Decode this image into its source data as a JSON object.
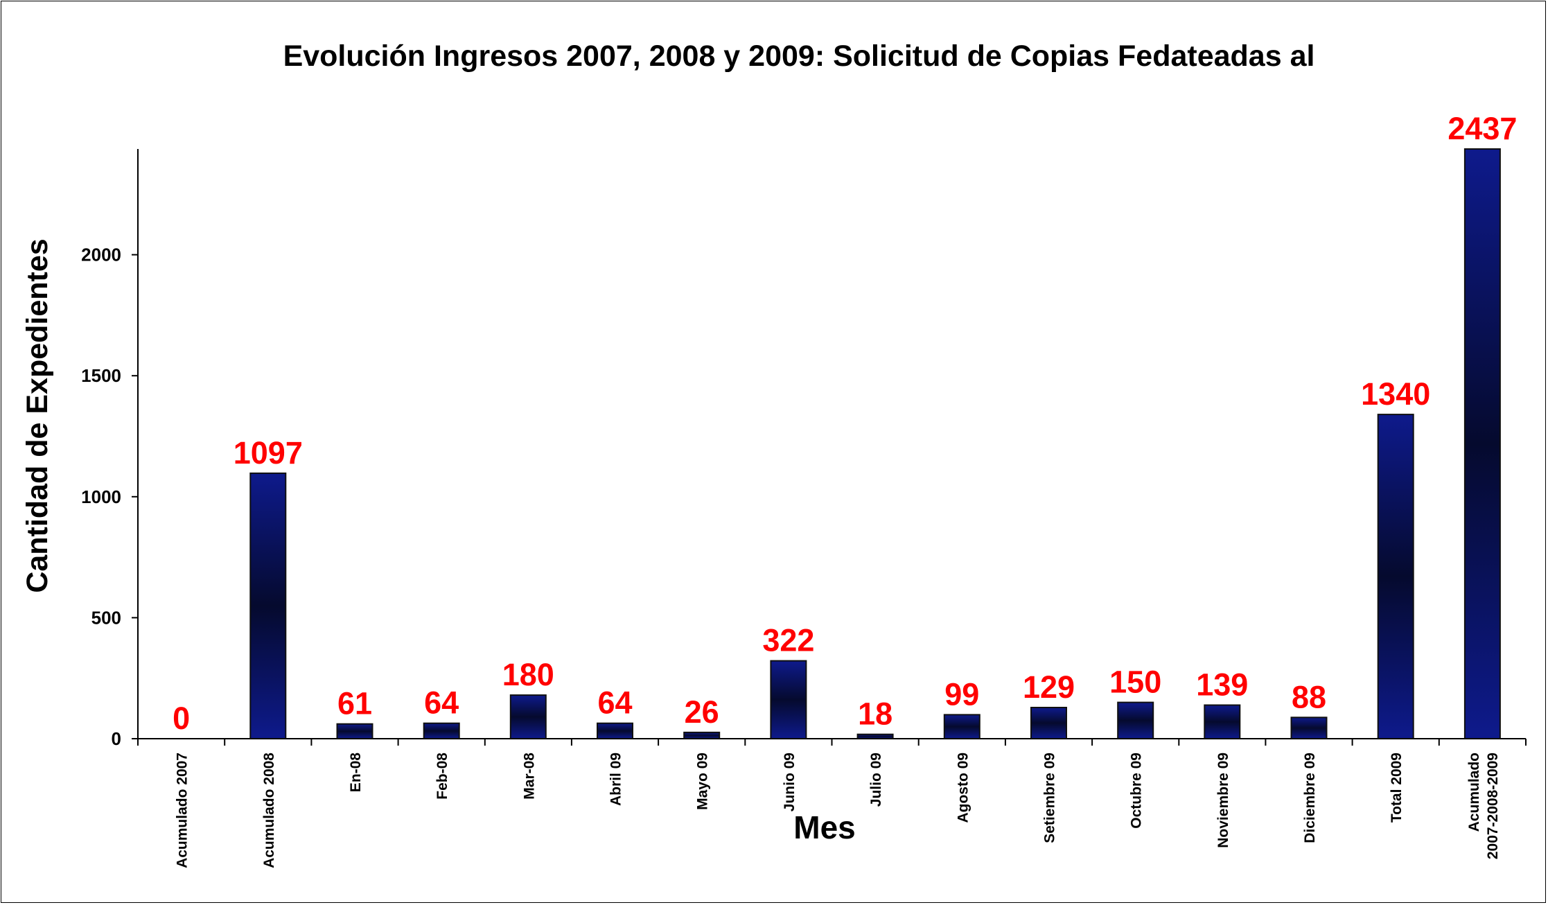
{
  "chart_data": {
    "type": "bar",
    "title": "Evolución Ingresos 2007, 2008 y 2009: Solicitud de Copias Fedateadas al",
    "xlabel": "Mes",
    "ylabel": "Cantidad de Expedientes",
    "categories": [
      "Acumulado 2007",
      "Acumulado 2008",
      "En-08",
      "Feb-08",
      "Mar-08",
      "Abril 09",
      "Mayo 09",
      "Junio 09",
      "Julio 09",
      "Agosto 09",
      "Setiembre 09",
      "Octubre 09",
      "Noviembre 09",
      "Diciembre 09",
      "Total 2009",
      "Acumulado 2007-2008-2009"
    ],
    "category_lines": [
      [
        "Acumulado 2007"
      ],
      [
        "Acumulado 2008"
      ],
      [
        "En-08"
      ],
      [
        "Feb-08"
      ],
      [
        "Mar-08"
      ],
      [
        "Abril 09"
      ],
      [
        "Mayo 09"
      ],
      [
        "Junio 09"
      ],
      [
        "Julio 09"
      ],
      [
        "Agosto 09"
      ],
      [
        "Setiembre 09"
      ],
      [
        "Octubre 09"
      ],
      [
        "Noviembre 09"
      ],
      [
        "Diciembre 09"
      ],
      [
        "Total 2009"
      ],
      [
        "Acumulado",
        "2007-2008-2009"
      ]
    ],
    "values": [
      0,
      1097,
      61,
      64,
      180,
      64,
      26,
      322,
      18,
      99,
      129,
      150,
      139,
      88,
      1340,
      2437
    ],
    "data_labels": [
      "0",
      "1097",
      "61",
      "64",
      "180",
      "64",
      "26",
      "322",
      "18",
      "99",
      "129",
      "150",
      "139",
      "88",
      "1340",
      "2437"
    ],
    "yticks": [
      0,
      500,
      1000,
      1500,
      2000
    ],
    "ylim": [
      0,
      2437
    ],
    "grid": false,
    "legend": "none",
    "colors": {
      "bar_edge": "#101010",
      "bar_light": "#0e1a8c",
      "bar_dark": "#050a2e",
      "data_label": "#ff0000",
      "text": "#000000"
    }
  }
}
